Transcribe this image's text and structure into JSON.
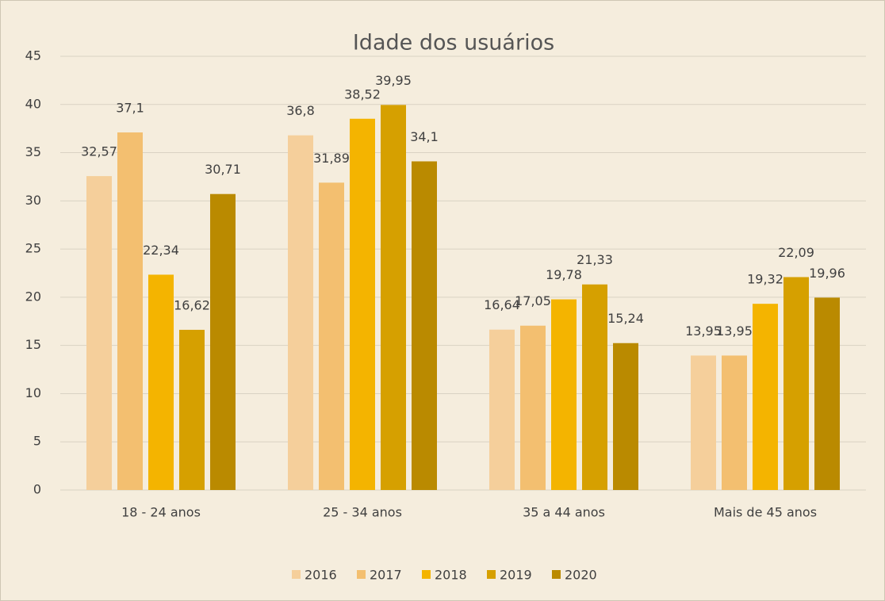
{
  "chart_data": {
    "type": "bar",
    "title": "Idade dos usuários",
    "categories": [
      "18 - 24 anos",
      "25 - 34 anos",
      "35 a 44 anos",
      "Mais de 45 anos"
    ],
    "series": [
      {
        "name": "2016",
        "color": "#f5cf9b",
        "values": [
          32.57,
          36.8,
          16.64,
          13.95
        ],
        "value_labels": [
          "32,57",
          "36,8",
          "16,64",
          "13,95"
        ]
      },
      {
        "name": "2017",
        "color": "#f3bf70",
        "values": [
          37.1,
          31.89,
          17.05,
          13.95
        ],
        "value_labels": [
          "37,1",
          "31,89",
          "17,05",
          "13,95"
        ]
      },
      {
        "name": "2018",
        "color": "#f4b400",
        "values": [
          22.34,
          38.52,
          19.78,
          19.32
        ],
        "value_labels": [
          "22,34",
          "38,52",
          "19,78",
          "19,32"
        ]
      },
      {
        "name": "2019",
        "color": "#d6a000",
        "values": [
          16.62,
          39.95,
          21.33,
          22.09
        ],
        "value_labels": [
          "16,62",
          "39,95",
          "21,33",
          "22,09"
        ]
      },
      {
        "name": "2020",
        "color": "#ba8a00",
        "values": [
          30.71,
          34.1,
          15.24,
          19.96
        ],
        "value_labels": [
          "30,71",
          "34,1",
          "15,24",
          "19,96"
        ]
      }
    ],
    "ylim": [
      0,
      45
    ],
    "yticks": [
      0,
      5,
      10,
      15,
      20,
      25,
      30,
      35,
      40,
      45
    ],
    "grid": true,
    "legend": "bottom"
  }
}
